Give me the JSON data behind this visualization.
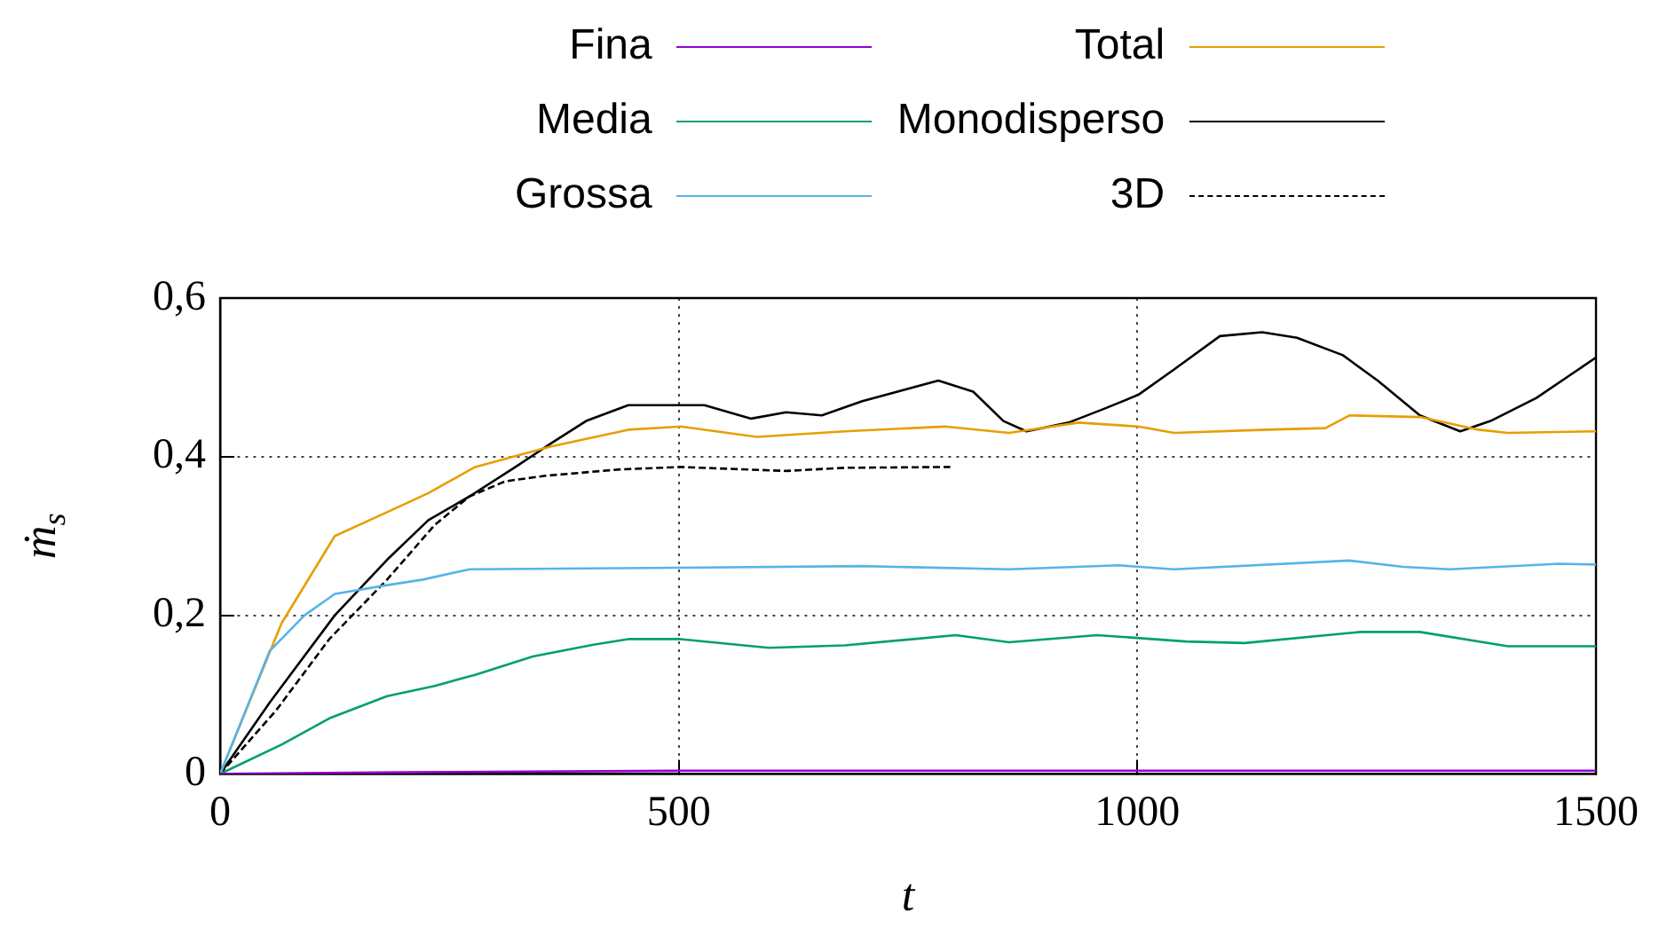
{
  "chart_data": {
    "type": "line",
    "xlabel": "t",
    "ylabel": "ṁ$_{s}$",
    "xlim": [
      0,
      1500
    ],
    "xticks": [
      0,
      500,
      1000,
      1500
    ],
    "ylim": [
      0,
      0.6
    ],
    "yticks": [
      {
        "value": 0,
        "label": "0"
      },
      {
        "value": 0.2,
        "label": "0,2"
      },
      {
        "value": 0.4,
        "label": "0,4"
      },
      {
        "value": 0.6,
        "label": "0,6"
      }
    ],
    "grid": true,
    "legend": "top",
    "marker": "none",
    "series": [
      {
        "name": "Fina",
        "color": "#9400d3",
        "x": [
          0,
          200,
          500,
          1000,
          1500
        ],
        "values": [
          0,
          0.002,
          0.004,
          0.004,
          0.004
        ]
      },
      {
        "name": "Media",
        "color": "#009e73",
        "x": [
          0,
          67,
          119,
          182,
          234,
          278,
          341,
          407,
          445,
          502,
          598,
          681,
          802,
          860,
          956,
          1053,
          1117,
          1243,
          1308,
          1404,
          1500
        ],
        "values": [
          0,
          0.037,
          0.07,
          0.098,
          0.111,
          0.125,
          0.148,
          0.163,
          0.17,
          0.17,
          0.159,
          0.162,
          0.175,
          0.166,
          0.175,
          0.167,
          0.165,
          0.179,
          0.179,
          0.161,
          0.161
        ]
      },
      {
        "name": "Grossa",
        "color": "#56b4e9",
        "x": [
          0,
          54,
          92,
          125,
          182,
          221,
          272,
          502,
          700,
          860,
          980,
          1040,
          1231,
          1290,
          1340,
          1460,
          1500
        ],
        "values": [
          0,
          0.155,
          0.2,
          0.227,
          0.238,
          0.245,
          0.258,
          0.26,
          0.262,
          0.258,
          0.263,
          0.258,
          0.269,
          0.261,
          0.258,
          0.265,
          0.264
        ]
      },
      {
        "name": "Total",
        "color": "#e69f00",
        "x": [
          0,
          67,
          125,
          182,
          227,
          278,
          361,
          445,
          502,
          585,
          681,
          790,
          860,
          936,
          1001,
          1040,
          1141,
          1205,
          1231,
          1308,
          1372,
          1404,
          1500
        ],
        "values": [
          0,
          0.19,
          0.3,
          0.33,
          0.354,
          0.387,
          0.413,
          0.434,
          0.438,
          0.425,
          0.432,
          0.438,
          0.43,
          0.443,
          0.438,
          0.43,
          0.434,
          0.436,
          0.452,
          0.45,
          0.434,
          0.43,
          0.432
        ]
      },
      {
        "name": "Monodisperso",
        "color": "#000000",
        "x": [
          0,
          54,
          125,
          182,
          227,
          272,
          322,
          361,
          399,
          445,
          528,
          579,
          617,
          656,
          700,
          783,
          821,
          854,
          879,
          925,
          963,
          1001,
          1040,
          1090,
          1136,
          1174,
          1224,
          1262,
          1308,
          1352,
          1385,
          1435,
          1500
        ],
        "values": [
          0,
          0.09,
          0.2,
          0.27,
          0.32,
          0.35,
          0.387,
          0.417,
          0.445,
          0.465,
          0.465,
          0.448,
          0.456,
          0.452,
          0.47,
          0.496,
          0.482,
          0.445,
          0.432,
          0.443,
          0.46,
          0.478,
          0.51,
          0.552,
          0.557,
          0.55,
          0.528,
          0.496,
          0.452,
          0.432,
          0.445,
          0.474,
          0.525
        ]
      },
      {
        "name": "3D",
        "color": "#000000",
        "line_style": "dashed",
        "x": [
          0,
          61,
          119,
          182,
          234,
          272,
          311,
          355,
          437,
          502,
          617,
          681,
          796
        ],
        "values": [
          0,
          0.08,
          0.17,
          0.245,
          0.314,
          0.35,
          0.369,
          0.376,
          0.384,
          0.387,
          0.382,
          0.386,
          0.387
        ]
      }
    ]
  }
}
